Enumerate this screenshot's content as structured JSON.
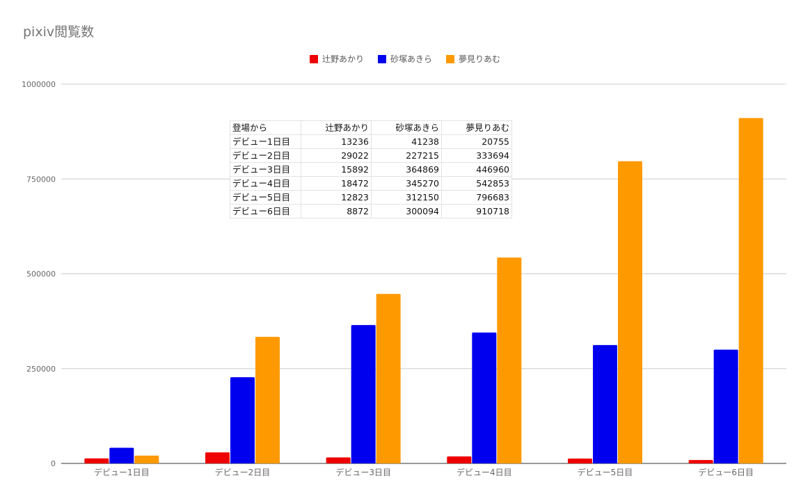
{
  "chart_data": {
    "type": "bar",
    "title": "pixiv閲覧数",
    "categories": [
      "デビュー1日目",
      "デビュー2日目",
      "デビュー3日目",
      "デビュー4日目",
      "デビュー5日目",
      "デビュー6日目"
    ],
    "series": [
      {
        "name": "辻野あかり",
        "color": "#ee0000",
        "values": [
          13236,
          29022,
          15892,
          18472,
          12823,
          8872
        ]
      },
      {
        "name": "砂塚あきら",
        "color": "#0000ee",
        "values": [
          41238,
          227215,
          364869,
          345270,
          312150,
          300094
        ]
      },
      {
        "name": "夢見りあむ",
        "color": "#ff9900",
        "values": [
          20755,
          333694,
          446960,
          542853,
          796683,
          910718
        ]
      }
    ],
    "ylim": [
      0,
      1000000
    ],
    "yticks": [
      0,
      250000,
      500000,
      750000,
      1000000
    ],
    "ytick_labels": [
      "0",
      "250000",
      "500000",
      "750000",
      "1000000"
    ],
    "grid": true,
    "legend_position": "top-center",
    "table": {
      "header": [
        "登場から",
        "辻野あかり",
        "砂塚あきら",
        "夢見りあむ"
      ],
      "rows": [
        [
          "デビュー1日目",
          "13236",
          "41238",
          "20755"
        ],
        [
          "デビュー2日目",
          "29022",
          "227215",
          "333694"
        ],
        [
          "デビュー3日目",
          "15892",
          "364869",
          "446960"
        ],
        [
          "デビュー4日目",
          "18472",
          "345270",
          "542853"
        ],
        [
          "デビュー5日目",
          "12823",
          "312150",
          "796683"
        ],
        [
          "デビュー6日目",
          "8872",
          "300094",
          "910718"
        ]
      ]
    }
  }
}
